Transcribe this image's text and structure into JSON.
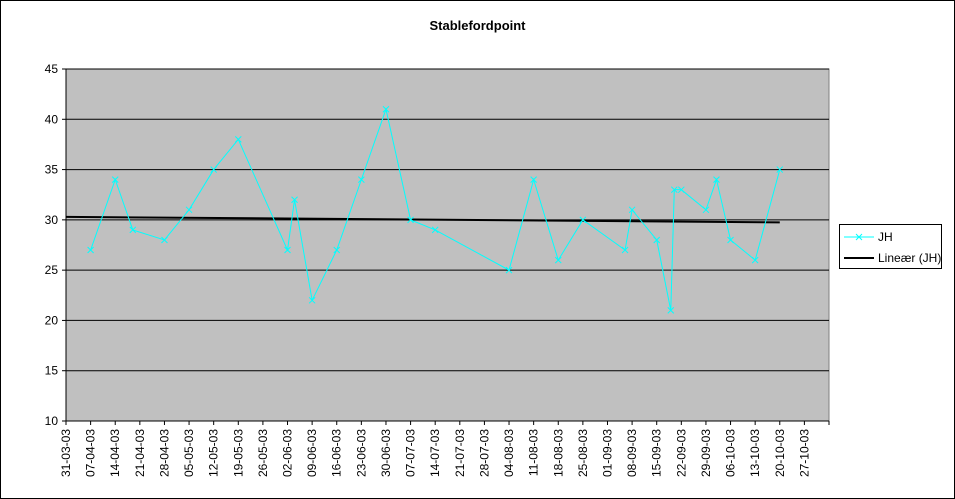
{
  "chart_data": {
    "type": "line",
    "title": "Stablefordpoint",
    "xlabel": "",
    "ylabel": "",
    "ylim": [
      10,
      45
    ],
    "yticks": [
      10,
      15,
      20,
      25,
      30,
      35,
      40,
      45
    ],
    "x_tick_labels": [
      "31-03-03",
      "07-04-03",
      "14-04-03",
      "21-04-03",
      "28-04-03",
      "05-05-03",
      "12-05-03",
      "19-05-03",
      "26-05-03",
      "02-06-03",
      "09-06-03",
      "16-06-03",
      "23-06-03",
      "30-06-03",
      "07-07-03",
      "14-07-03",
      "21-07-03",
      "28-07-03",
      "04-08-03",
      "11-08-03",
      "18-08-03",
      "25-08-03",
      "01-09-03",
      "08-09-03",
      "15-09-03",
      "22-09-03",
      "29-09-03",
      "06-10-03",
      "13-10-03",
      "20-10-03",
      "27-10-03"
    ],
    "grid": "horizontal",
    "background": "#c0c0c0",
    "legend_position": "right",
    "series": [
      {
        "name": "JH",
        "color": "#00ffff",
        "marker": "x",
        "points": [
          {
            "x": "07-04-03",
            "y": 27
          },
          {
            "x": "14-04-03",
            "y": 34
          },
          {
            "x": "19-04-03",
            "y": 29
          },
          {
            "x": "28-04-03",
            "y": 28
          },
          {
            "x": "05-05-03",
            "y": 31
          },
          {
            "x": "12-05-03",
            "y": 35
          },
          {
            "x": "19-05-03",
            "y": 38
          },
          {
            "x": "02-06-03",
            "y": 27
          },
          {
            "x": "04-06-03",
            "y": 32
          },
          {
            "x": "09-06-03",
            "y": 22
          },
          {
            "x": "16-06-03",
            "y": 27
          },
          {
            "x": "23-06-03",
            "y": 34
          },
          {
            "x": "30-06-03",
            "y": 41
          },
          {
            "x": "07-07-03",
            "y": 30
          },
          {
            "x": "14-07-03",
            "y": 29
          },
          {
            "x": "04-08-03",
            "y": 25
          },
          {
            "x": "11-08-03",
            "y": 34
          },
          {
            "x": "18-08-03",
            "y": 26
          },
          {
            "x": "25-08-03",
            "y": 30
          },
          {
            "x": "06-09-03",
            "y": 27
          },
          {
            "x": "08-09-03",
            "y": 31
          },
          {
            "x": "15-09-03",
            "y": 28
          },
          {
            "x": "19-09-03",
            "y": 21
          },
          {
            "x": "20-09-03",
            "y": 33
          },
          {
            "x": "22-09-03",
            "y": 33
          },
          {
            "x": "29-09-03",
            "y": 31
          },
          {
            "x": "02-10-03",
            "y": 34
          },
          {
            "x": "06-10-03",
            "y": 28
          },
          {
            "x": "13-10-03",
            "y": 26
          },
          {
            "x": "20-10-03",
            "y": 35
          }
        ]
      }
    ],
    "trendline": {
      "name": "Lineær (JH)",
      "color": "#000000",
      "from": {
        "x": "31-03-03",
        "y": 30.3
      },
      "to": {
        "x": "20-10-03",
        "y": 29.75
      }
    }
  }
}
